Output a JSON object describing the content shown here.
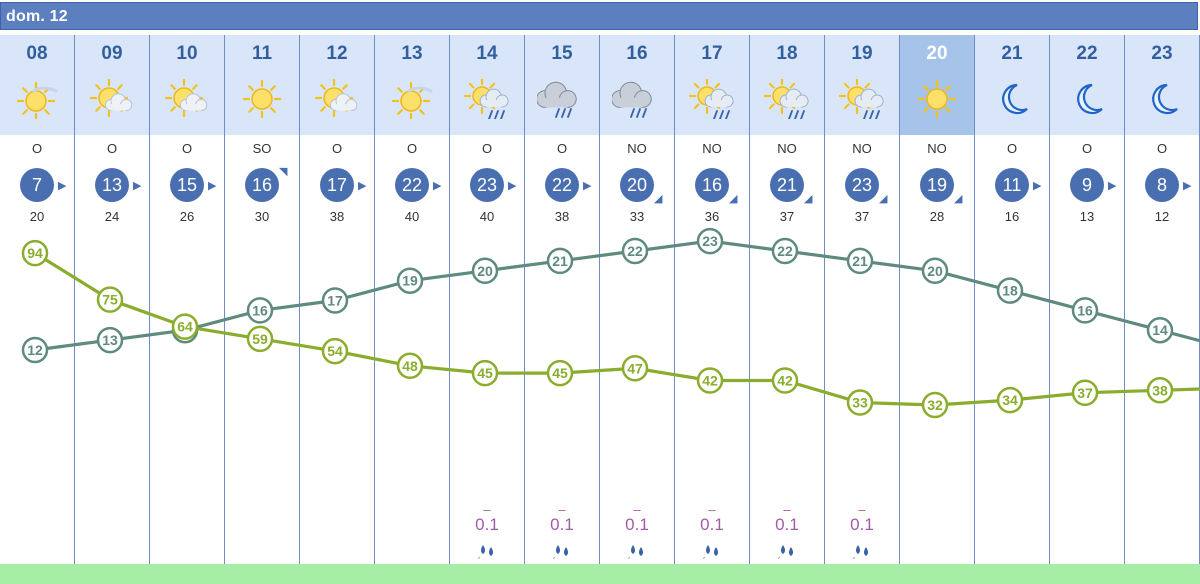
{
  "header": {
    "title": "dom. 12"
  },
  "colors": {
    "header_bar": "#5b7fbf",
    "day_bg": "#d9e6fa",
    "night_bg": "#a6c3ea",
    "wind_circle": "#4a6fb0",
    "temperature_line": "#5e8a80",
    "humidity_line": "#8aad2d",
    "rain_text": "#a05ca7",
    "bottom_bar": "#a6eea6"
  },
  "hours": [
    {
      "hour": "08",
      "icon": "sun-haze-icon",
      "night": false,
      "wind_dir": "O",
      "wind": "7",
      "gust": "20",
      "arrow": "right",
      "temp": 12,
      "humidity": 94,
      "rain": null
    },
    {
      "hour": "09",
      "icon": "sun-cloud-icon",
      "night": false,
      "wind_dir": "O",
      "wind": "13",
      "gust": "24",
      "arrow": "right",
      "temp": 13,
      "humidity": 75,
      "rain": null
    },
    {
      "hour": "10",
      "icon": "sun-cloud-icon",
      "night": false,
      "wind_dir": "O",
      "wind": "15",
      "gust": "26",
      "arrow": "right",
      "temp": 14,
      "humidity": 64,
      "rain": null
    },
    {
      "hour": "11",
      "icon": "sun-icon",
      "night": false,
      "wind_dir": "SO",
      "wind": "16",
      "gust": "30",
      "arrow": "up-right",
      "temp": 16,
      "humidity": 59,
      "rain": null
    },
    {
      "hour": "12",
      "icon": "sun-cloud-icon",
      "night": false,
      "wind_dir": "O",
      "wind": "17",
      "gust": "38",
      "arrow": "right",
      "temp": 17,
      "humidity": 54,
      "rain": null
    },
    {
      "hour": "13",
      "icon": "sun-haze-icon",
      "night": false,
      "wind_dir": "O",
      "wind": "22",
      "gust": "40",
      "arrow": "right",
      "temp": 19,
      "humidity": 48,
      "rain": null
    },
    {
      "hour": "14",
      "icon": "sun-cloud-rain-icon",
      "night": false,
      "wind_dir": "O",
      "wind": "23",
      "gust": "40",
      "arrow": "right",
      "temp": 20,
      "humidity": 45,
      "rain": "0.1"
    },
    {
      "hour": "15",
      "icon": "cloud-rain-icon",
      "night": false,
      "wind_dir": "O",
      "wind": "22",
      "gust": "38",
      "arrow": "right",
      "temp": 21,
      "humidity": 45,
      "rain": "0.1"
    },
    {
      "hour": "16",
      "icon": "cloud-rain-icon",
      "night": false,
      "wind_dir": "NO",
      "wind": "20",
      "gust": "33",
      "arrow": "down-right",
      "temp": 22,
      "humidity": 47,
      "rain": "0.1"
    },
    {
      "hour": "17",
      "icon": "sun-cloud-rain-icon",
      "night": false,
      "wind_dir": "NO",
      "wind": "16",
      "gust": "36",
      "arrow": "down-right",
      "temp": 23,
      "humidity": 42,
      "rain": "0.1"
    },
    {
      "hour": "18",
      "icon": "sun-cloud-rain-icon",
      "night": false,
      "wind_dir": "NO",
      "wind": "21",
      "gust": "37",
      "arrow": "down-right",
      "temp": 22,
      "humidity": 42,
      "rain": "0.1"
    },
    {
      "hour": "19",
      "icon": "sun-cloud-rain-icon",
      "night": false,
      "wind_dir": "NO",
      "wind": "23",
      "gust": "37",
      "arrow": "down-right",
      "temp": 21,
      "humidity": 33,
      "rain": "0.1"
    },
    {
      "hour": "20",
      "icon": "sun-icon",
      "night": true,
      "wind_dir": "NO",
      "wind": "19",
      "gust": "28",
      "arrow": "down-right",
      "temp": 20,
      "humidity": 32,
      "rain": null
    },
    {
      "hour": "21",
      "icon": "moon-icon",
      "night": false,
      "wind_dir": "O",
      "wind": "11",
      "gust": "16",
      "arrow": "right",
      "temp": 18,
      "humidity": 34,
      "rain": null
    },
    {
      "hour": "22",
      "icon": "moon-icon",
      "night": false,
      "wind_dir": "O",
      "wind": "9",
      "gust": "13",
      "arrow": "right",
      "temp": 16,
      "humidity": 37,
      "rain": null
    },
    {
      "hour": "23",
      "icon": "moon-icon",
      "night": false,
      "wind_dir": "O",
      "wind": "8",
      "gust": "12",
      "arrow": "right",
      "temp": 14,
      "humidity": 38,
      "rain": null
    }
  ],
  "rain_dash": "–"
}
